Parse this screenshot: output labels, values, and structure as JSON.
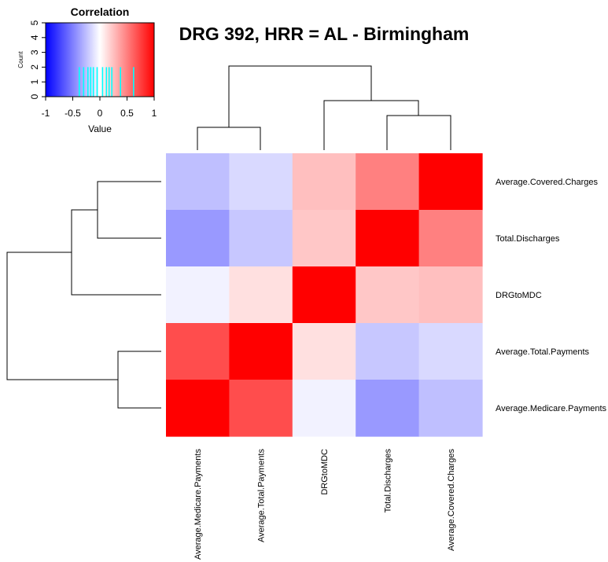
{
  "chart_data": {
    "type": "heatmap",
    "title": "DRG 392, HRR = AL - Birmingham",
    "rows": [
      "Average.Covered.Charges",
      "Total.Discharges",
      "DRGtoMDC",
      "Average.Total.Payments",
      "Average.Medicare.Payments"
    ],
    "columns": [
      "Average.Medicare.Payments",
      "Average.Total.Payments",
      "DRGtoMDC",
      "Total.Discharges",
      "Average.Covered.Charges"
    ],
    "values": [
      [
        -0.25,
        -0.15,
        0.25,
        0.5,
        1.0
      ],
      [
        -0.4,
        -0.22,
        0.22,
        1.0,
        0.5
      ],
      [
        -0.05,
        0.12,
        1.0,
        0.22,
        0.25
      ],
      [
        0.7,
        1.0,
        0.12,
        -0.22,
        -0.15
      ],
      [
        1.0,
        0.7,
        -0.05,
        -0.4,
        -0.25
      ]
    ],
    "color_key": {
      "title": "Correlation",
      "xlabel": "Value",
      "ylabel": "Count",
      "x_ticks": [
        "-1",
        "-0.5",
        "0",
        "0.5",
        "1"
      ],
      "y_ticks": [
        "0",
        "1",
        "2",
        "3",
        "4",
        "5"
      ],
      "xlim": [
        -1,
        1
      ],
      "ylim": [
        0,
        5
      ],
      "low_color": "#0000ff",
      "mid_color": "#ffffff",
      "high_color": "#ff0000",
      "histogram_color": "#00ffff",
      "histogram_values": [
        -0.38,
        -0.3,
        -0.22,
        -0.17,
        -0.12,
        -0.05,
        0.05,
        0.12,
        0.17,
        0.22,
        0.38,
        0.62
      ],
      "histogram_counts": [
        2,
        2,
        2,
        2,
        2,
        2,
        2,
        2,
        2,
        2,
        2,
        2
      ]
    }
  }
}
